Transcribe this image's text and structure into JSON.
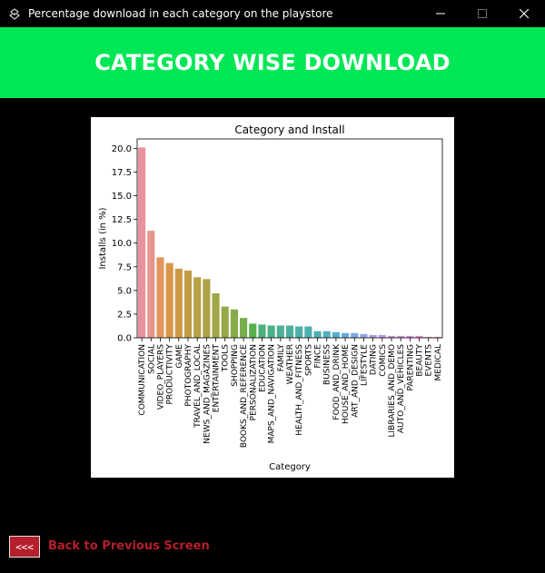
{
  "window": {
    "title": "Percentage download in each category on the playstore",
    "app_icon": "feather-icon",
    "minimize_icon": "minimize-icon",
    "maximize_icon": "maximize-icon",
    "close_icon": "close-icon"
  },
  "header": {
    "title": "CATEGORY WISE DOWNLOAD",
    "background_color": "#00e756"
  },
  "footer": {
    "back_button_label": "<<<",
    "back_link_label": "Back to Previous Screen",
    "accent_color": "#b51f2b"
  },
  "chart_data": {
    "type": "bar",
    "title": "Category and Install",
    "xlabel": "Category",
    "ylabel": "Installs (in %)",
    "ylim": [
      0,
      21
    ],
    "yticks": [
      "0.0",
      "2.5",
      "5.0",
      "7.5",
      "10.0",
      "12.5",
      "15.0",
      "17.5",
      "20.0"
    ],
    "categories": [
      "COMMUNICATION",
      "SOCIAL",
      "VIDEO_PLAYERS",
      "PRODUCTIVITY",
      "GAME",
      "PHOTOGRAPHY",
      "TRAVEL_AND_LOCAL",
      "NEWS_AND_MAGAZINES",
      "ENTERTAINMENT",
      "TOOLS",
      "SHOPPING",
      "BOOKS_AND_REFERENCE",
      "PERSONALIZATION",
      "EDUCATION",
      "MAPS_AND_NAVIGATION",
      "FAMILY",
      "WEATHER",
      "HEALTH_AND_FITNESS",
      "SPORTS",
      "FINCE",
      "BUSINESS",
      "FOOD_AND_DRINK",
      "HOUSE_AND_HOME",
      "ART_AND_DESIGN",
      "LIFESTYLE",
      "DATING",
      "COMICS",
      "LIBRARIES_AND_DEMO",
      "AUTO_AND_VEHICLES",
      "PARENTING",
      "BEAUTY",
      "EVENTS",
      "MEDICAL"
    ],
    "values": [
      20.1,
      11.3,
      8.5,
      7.9,
      7.3,
      7.1,
      6.4,
      6.2,
      4.7,
      3.3,
      3.0,
      2.1,
      1.5,
      1.4,
      1.3,
      1.3,
      1.3,
      1.2,
      1.2,
      0.7,
      0.7,
      0.6,
      0.5,
      0.5,
      0.4,
      0.3,
      0.3,
      0.2,
      0.2,
      0.2,
      0.2,
      0.1,
      0.1
    ],
    "colors": [
      "#e8939f",
      "#e7948d",
      "#e3965c",
      "#d89746",
      "#cd9a44",
      "#c19d45",
      "#b8a046",
      "#aca347",
      "#a1a647",
      "#95a948",
      "#88ab49",
      "#78ad4a",
      "#58b04b",
      "#4db07b",
      "#4cb18b",
      "#4cb097",
      "#4db09f",
      "#4eafa6",
      "#4fafad",
      "#50b0b7",
      "#52b0c2",
      "#55afcd",
      "#63acd9",
      "#7ba6df",
      "#92a2e3",
      "#a89ee5",
      "#b89be3",
      "#c796e2",
      "#d491df",
      "#de8edb",
      "#e68ed2",
      "#e890c5",
      "#e992b4"
    ],
    "grid": false,
    "legend": "none"
  }
}
